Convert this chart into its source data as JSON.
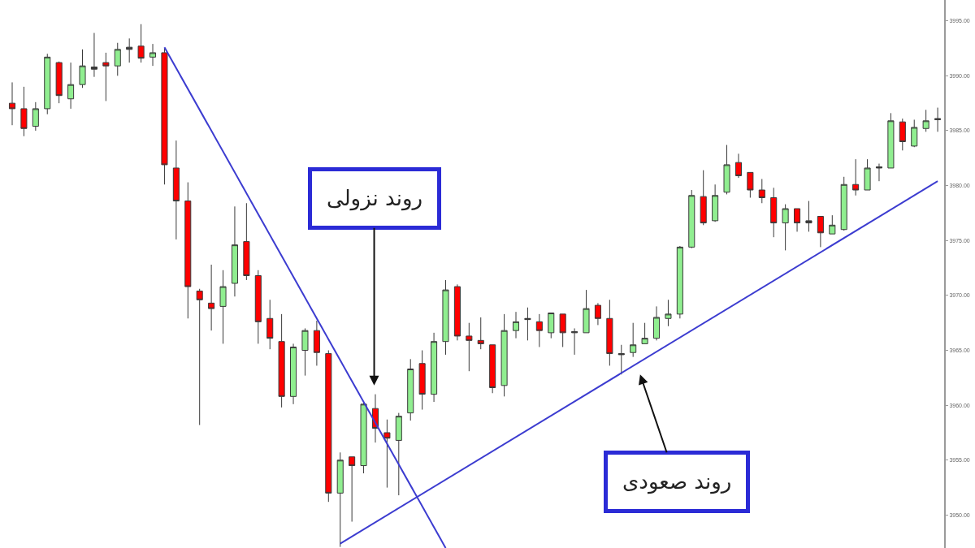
{
  "chart_data": {
    "type": "candlestick",
    "categories": [
      null,
      null,
      null,
      null,
      null,
      null,
      null,
      null,
      null,
      null,
      null,
      null,
      null,
      null,
      null,
      null,
      null,
      null,
      null,
      null,
      null,
      null,
      null,
      null,
      null,
      null,
      null,
      null,
      null,
      null,
      null,
      null,
      null,
      null,
      null,
      null,
      null,
      null,
      null,
      null,
      null,
      null,
      null,
      null,
      null,
      null,
      null,
      null,
      null,
      null,
      null,
      null,
      null,
      null,
      null,
      null,
      null,
      null,
      null,
      null,
      null,
      null,
      null,
      null,
      null,
      null,
      null,
      null,
      null,
      null,
      null,
      null,
      null,
      null,
      null,
      null,
      null,
      null,
      null,
      null
    ],
    "ohlc": [
      [
        3987.5,
        3989.4,
        3985.5,
        3987
      ],
      [
        3987,
        3989,
        3984.5,
        3985.2
      ],
      [
        3985.4,
        3987.6,
        3985,
        3987
      ],
      [
        3987,
        3992,
        3986.5,
        3991.7
      ],
      [
        3991.2,
        3991.3,
        3987.5,
        3988.2
      ],
      [
        3987.9,
        3991.2,
        3987,
        3989.2
      ],
      [
        3989.2,
        3992.4,
        3988.9,
        3990.9
      ],
      [
        3990.6,
        3993.9,
        3989.9,
        3990.8
      ],
      [
        3991.2,
        3992.1,
        3987.7,
        3990.9
      ],
      [
        3990.9,
        3993,
        3990,
        3992.4
      ],
      [
        3992.6,
        3993.4,
        3991.2,
        3992.4
      ],
      [
        3992.7,
        3994.7,
        3991.2,
        3991.6
      ],
      [
        3991.7,
        3992.9,
        3990.9,
        3992.1
      ],
      [
        3992.1,
        3992.5,
        3980.1,
        3981.9
      ],
      [
        3981.6,
        3984.1,
        3975.1,
        3978.6
      ],
      [
        3978.6,
        3980.3,
        3967.9,
        3970.8
      ],
      [
        3970.4,
        3970.6,
        3958.2,
        3969.6
      ],
      [
        3969.3,
        3972.8,
        3966.8,
        3968.8
      ],
      [
        3969,
        3972.3,
        3965.6,
        3970.8
      ],
      [
        3971.1,
        3978.1,
        3969.9,
        3974.6
      ],
      [
        3974.9,
        3978.4,
        3971.4,
        3971.8
      ],
      [
        3971.8,
        3972.3,
        3965.6,
        3967.6
      ],
      [
        3967.9,
        3969.6,
        3965.1,
        3966.1
      ],
      [
        3965.8,
        3968.3,
        3959.8,
        3960.8
      ],
      [
        3960.8,
        3965.6,
        3960.1,
        3965.3
      ],
      [
        3965,
        3967,
        3962.7,
        3966.8
      ],
      [
        3966.8,
        3967.7,
        3963.6,
        3964.8
      ],
      [
        3964.7,
        3965,
        3951.2,
        3952
      ],
      [
        3952,
        3955.7,
        3947.1,
        3955
      ],
      [
        3955.3,
        3955.3,
        3949.4,
        3954.5
      ],
      [
        3954.5,
        3960.3,
        3953.8,
        3960.1
      ],
      [
        3959.7,
        3961,
        3956.6,
        3957.9
      ],
      [
        3957.5,
        3958.7,
        3952.5,
        3957
      ],
      [
        3956.8,
        3959.3,
        3951.8,
        3959
      ],
      [
        3959.3,
        3964.2,
        3958.6,
        3963.3
      ],
      [
        3963.8,
        3965,
        3959.6,
        3961
      ],
      [
        3961,
        3966.6,
        3960.3,
        3965.8
      ],
      [
        3965.8,
        3971.4,
        3964.6,
        3970.5
      ],
      [
        3970.8,
        3971,
        3965.9,
        3966.3
      ],
      [
        3966.3,
        3967.5,
        3963.1,
        3965.9
      ],
      [
        3965.9,
        3968,
        3965.1,
        3965.6
      ],
      [
        3965.5,
        3965.5,
        3961.1,
        3961.6
      ],
      [
        3961.8,
        3968.3,
        3960.8,
        3966.8
      ],
      [
        3966.8,
        3968.5,
        3966.1,
        3967.6
      ],
      [
        3967.8,
        3968.9,
        3965.9,
        3967.9
      ],
      [
        3967.6,
        3968.3,
        3965.3,
        3966.8
      ],
      [
        3966.6,
        3968.4,
        3966.1,
        3968.4
      ],
      [
        3968.3,
        3968.3,
        3965.3,
        3966.6
      ],
      [
        3966.6,
        3967,
        3964.6,
        3966.7
      ],
      [
        3966.6,
        3970.5,
        3966.6,
        3968.8
      ],
      [
        3969.1,
        3969.3,
        3967.3,
        3967.9
      ],
      [
        3967.9,
        3969.6,
        3963.6,
        3964.7
      ],
      [
        3964.6,
        3965.5,
        3962.8,
        3964.7
      ],
      [
        3964.8,
        3967.5,
        3964.4,
        3965.5
      ],
      [
        3965.6,
        3967.5,
        3965.6,
        3966.1
      ],
      [
        3966.1,
        3969,
        3965.9,
        3968
      ],
      [
        3967.9,
        3969.6,
        3967.2,
        3968.3
      ],
      [
        3968.3,
        3974.5,
        3967.9,
        3974.4
      ],
      [
        3974.4,
        3979.6,
        3974.3,
        3979.1
      ],
      [
        3979,
        3981.4,
        3976.4,
        3976.6
      ],
      [
        3976.8,
        3980.1,
        3976.7,
        3979.1
      ],
      [
        3979.4,
        3983.7,
        3979.2,
        3981.9
      ],
      [
        3982.1,
        3982.9,
        3980.7,
        3980.9
      ],
      [
        3981.2,
        3981.2,
        3978.9,
        3979.6
      ],
      [
        3979.6,
        3980.6,
        3978.4,
        3978.9
      ],
      [
        3978.9,
        3979.8,
        3975.3,
        3976.6
      ],
      [
        3976.6,
        3978.3,
        3974.1,
        3977.9
      ],
      [
        3977.9,
        3977.9,
        3975.8,
        3976.6
      ],
      [
        3976.6,
        3978.6,
        3975.8,
        3976.8
      ],
      [
        3977.2,
        3977.2,
        3974.4,
        3975.7
      ],
      [
        3975.6,
        3977.3,
        3975.6,
        3976.4
      ],
      [
        3976,
        3980.8,
        3975.9,
        3980.1
      ],
      [
        3980.1,
        3982.4,
        3979.1,
        3979.6
      ],
      [
        3979.6,
        3982.4,
        3979.6,
        3981.6
      ],
      [
        3981.6,
        3982,
        3980.4,
        3981.7
      ],
      [
        3981.6,
        3986.6,
        3981.6,
        3985.9
      ],
      [
        3985.8,
        3986.1,
        3983.2,
        3984
      ],
      [
        3983.6,
        3986,
        3983.5,
        3985.3
      ],
      [
        3985.2,
        3986.9,
        3984.9,
        3985.9
      ],
      [
        3986,
        3987.1,
        3984.9,
        3986.1
      ]
    ],
    "colors": [
      "#ff0000",
      "#ff0000",
      "#90ee90",
      "#90ee90",
      "#ff0000",
      "#90ee90",
      "#90ee90",
      "#3a3a3a",
      "#ff0000",
      "#90ee90",
      "#3a3a3a",
      "#ff0000",
      "#90ee90",
      "#ff0000",
      "#ff0000",
      "#ff0000",
      "#ff0000",
      "#ff0000",
      "#90ee90",
      "#90ee90",
      "#ff0000",
      "#ff0000",
      "#ff0000",
      "#ff0000",
      "#90ee90",
      "#90ee90",
      "#ff0000",
      "#ff0000",
      "#90ee90",
      "#ff0000",
      "#90ee90",
      "#ff0000",
      "#ff0000",
      "#90ee90",
      "#90ee90",
      "#ff0000",
      "#90ee90",
      "#90ee90",
      "#ff0000",
      "#ff0000",
      "#ff0000",
      "#ff0000",
      "#90ee90",
      "#90ee90",
      "#3a3a3a",
      "#ff0000",
      "#90ee90",
      "#ff0000",
      "#3a3a3a",
      "#90ee90",
      "#ff0000",
      "#ff0000",
      "#3a3a3a",
      "#90ee90",
      "#90ee90",
      "#90ee90",
      "#90ee90",
      "#90ee90",
      "#90ee90",
      "#ff0000",
      "#90ee90",
      "#90ee90",
      "#ff0000",
      "#ff0000",
      "#ff0000",
      "#ff0000",
      "#90ee90",
      "#ff0000",
      "#3a3a3a",
      "#ff0000",
      "#90ee90",
      "#90ee90",
      "#ff0000",
      "#90ee90",
      "#3a3a3a",
      "#90ee90",
      "#ff0000",
      "#90ee90",
      "#90ee90",
      "#3a3a3a"
    ],
    "series": [
      {
        "type": "line",
        "color": "#3c3cd0",
        "values": [
          null,
          null,
          null,
          null,
          null,
          null,
          null,
          null,
          null,
          null,
          null,
          null,
          null,
          3992.6,
          null,
          null,
          null,
          null,
          null,
          null,
          null,
          null,
          null,
          null,
          null,
          null,
          null,
          null,
          null,
          null,
          null,
          null,
          null,
          null,
          null,
          null,
          null,
          3947.0,
          null,
          null,
          null,
          null,
          null,
          null,
          null,
          null,
          null,
          null,
          null,
          null,
          null,
          null,
          null,
          null,
          null,
          null,
          null,
          null,
          null,
          null,
          null,
          null,
          null,
          null,
          null,
          null,
          null,
          null,
          null,
          null,
          null,
          null,
          null,
          null,
          null,
          null,
          null,
          null,
          null,
          null
        ]
      },
      {
        "type": "line",
        "color": "#3c3cd0",
        "values": [
          null,
          null,
          null,
          null,
          null,
          null,
          null,
          null,
          null,
          null,
          null,
          null,
          null,
          null,
          null,
          null,
          null,
          null,
          null,
          null,
          null,
          null,
          null,
          null,
          null,
          null,
          null,
          null,
          3947.4,
          null,
          null,
          null,
          null,
          null,
          null,
          null,
          null,
          null,
          null,
          null,
          null,
          null,
          null,
          null,
          null,
          null,
          null,
          null,
          null,
          null,
          null,
          null,
          null,
          null,
          null,
          null,
          null,
          null,
          null,
          null,
          null,
          null,
          null,
          null,
          null,
          null,
          null,
          null,
          null,
          null,
          null,
          null,
          null,
          null,
          null,
          null,
          null,
          null,
          null,
          3980.4
        ]
      }
    ],
    "ylim": [
      3947.0,
      3996.9
    ],
    "yticks": [
      {
        "value": 3950,
        "label": "3950.00"
      },
      {
        "value": 3955,
        "label": "3955.00"
      },
      {
        "value": 3960,
        "label": "3960.00"
      },
      {
        "value": 3965,
        "label": "3965.00"
      },
      {
        "value": 3970,
        "label": "3970.00"
      },
      {
        "value": 3975,
        "label": "3975.00"
      },
      {
        "value": 3980,
        "label": "3980.00"
      },
      {
        "value": 3985,
        "label": "3985.00"
      },
      {
        "value": 3990,
        "label": "3990.00"
      },
      {
        "value": 3995,
        "label": "3995.00"
      }
    ],
    "tick_labels": "y",
    "annotations": [
      "روند نزولی",
      "روند صعودی"
    ]
  }
}
